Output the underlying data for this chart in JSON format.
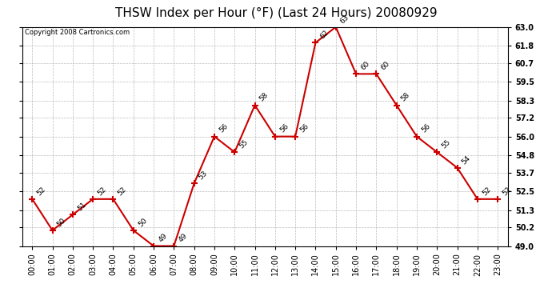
{
  "title": "THSW Index per Hour (°F) (Last 24 Hours) 20080929",
  "copyright": "Copyright 2008 Cartronics.com",
  "hours": [
    "00:00",
    "01:00",
    "02:00",
    "03:00",
    "04:00",
    "05:00",
    "06:00",
    "07:00",
    "08:00",
    "09:00",
    "10:00",
    "11:00",
    "12:00",
    "13:00",
    "14:00",
    "15:00",
    "16:00",
    "17:00",
    "18:00",
    "19:00",
    "20:00",
    "21:00",
    "22:00",
    "23:00"
  ],
  "values": [
    52,
    50,
    51,
    52,
    52,
    50,
    49,
    49,
    53,
    56,
    55,
    58,
    56,
    56,
    62,
    63,
    60,
    60,
    58,
    56,
    55,
    54,
    52,
    52
  ],
  "line_color": "#cc0000",
  "ylim": [
    49.0,
    63.0
  ],
  "yticks": [
    49.0,
    50.2,
    51.3,
    52.5,
    53.7,
    54.8,
    56.0,
    57.2,
    58.3,
    59.5,
    60.7,
    61.8,
    63.0
  ],
  "background_color": "#ffffff",
  "grid_color": "#aaaaaa",
  "title_fontsize": 11,
  "tick_fontsize": 7,
  "annotation_fontsize": 6.5,
  "copyright_fontsize": 6
}
